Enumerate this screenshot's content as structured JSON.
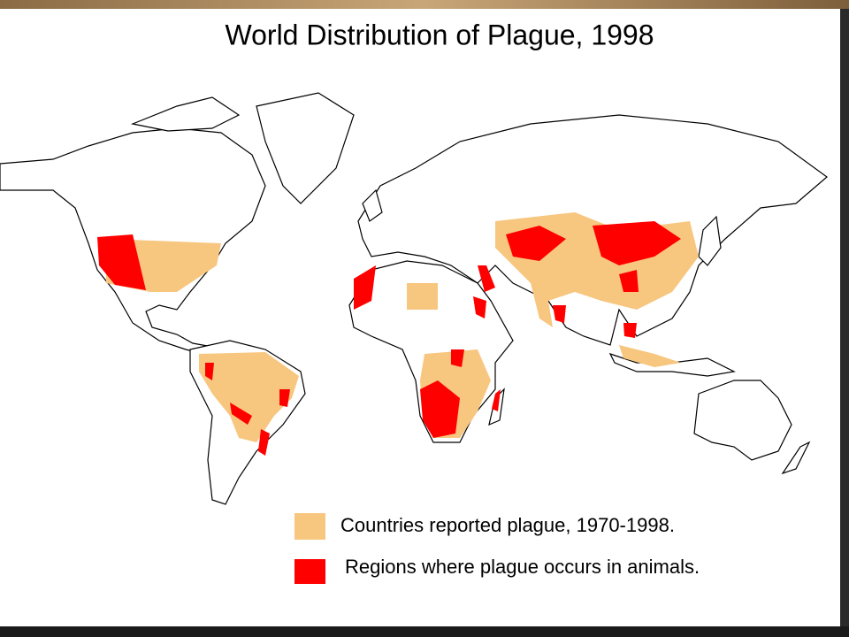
{
  "title": "World Distribution of Plague, 1998",
  "legend": [
    {
      "label": "Countries reported plague, 1970-1998.",
      "color": "#f7c67f"
    },
    {
      "label": "Regions where plague occurs in animals.",
      "color": "#ff0000"
    }
  ]
}
